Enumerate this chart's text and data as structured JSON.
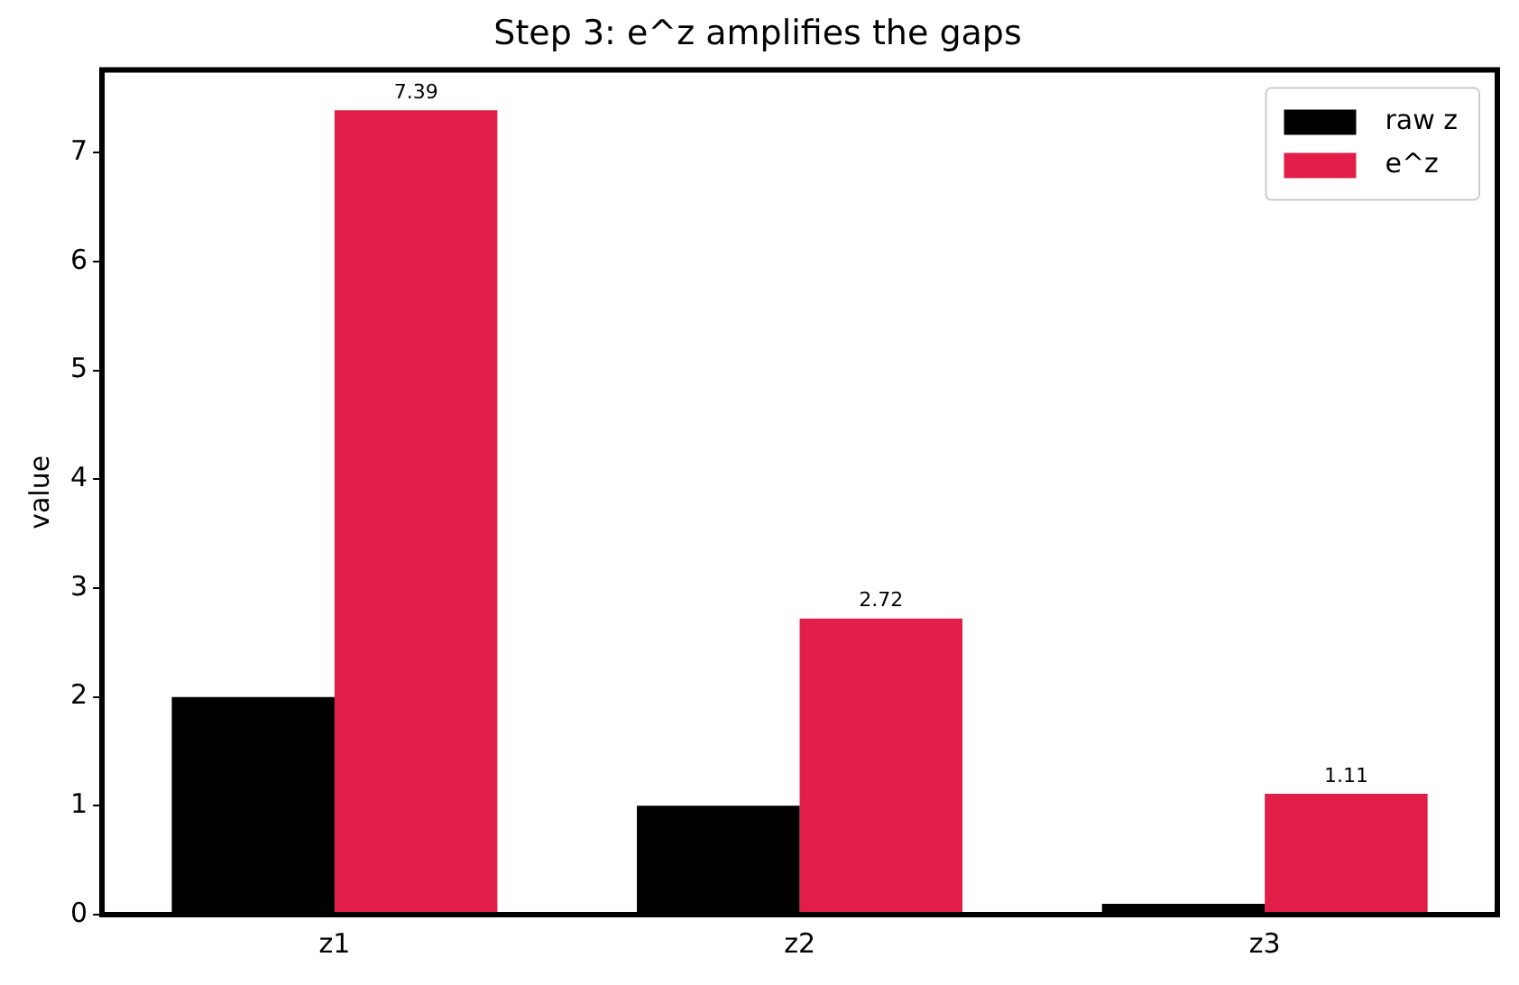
{
  "chart_data": {
    "type": "bar",
    "title": "Step 3: e^z amplifies the gaps",
    "ylabel": "value",
    "categories": [
      "z1",
      "z2",
      "z3"
    ],
    "series": [
      {
        "name": "raw z",
        "color": "#000000",
        "values": [
          2,
          1,
          0.1
        ]
      },
      {
        "name": "e^z",
        "color": "#e01e48",
        "values": [
          7.39,
          2.72,
          1.11
        ],
        "value_labels": [
          "7.39",
          "2.72",
          "1.11"
        ]
      }
    ],
    "ylim": [
      0,
      7.76
    ],
    "yticks": [
      0,
      1,
      2,
      3,
      4,
      5,
      6,
      7
    ],
    "grid": false,
    "legend": "top right"
  }
}
